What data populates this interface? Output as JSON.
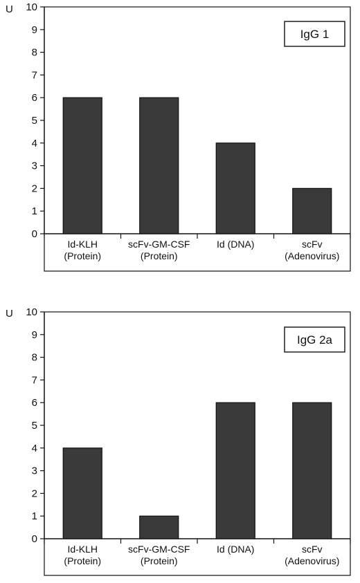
{
  "chart_data": [
    {
      "type": "bar",
      "title": "IgG 1",
      "ylabel": "U",
      "xlabel": "",
      "ylim": [
        0,
        10
      ],
      "yticks": [
        0,
        1,
        2,
        3,
        4,
        5,
        6,
        7,
        8,
        9,
        10
      ],
      "legend_position": "top-right",
      "grid": false,
      "bar_color": "#3a3a3a",
      "categories": [
        [
          "Id-KLH",
          "(Protein)"
        ],
        [
          "scFv-GM-CSF",
          "(Protein)"
        ],
        [
          "Id (DNA)"
        ],
        [
          "scFv",
          "(Adenovirus)"
        ]
      ],
      "values": [
        6,
        6,
        4,
        2
      ]
    },
    {
      "type": "bar",
      "title": "IgG 2a",
      "ylabel": "U",
      "xlabel": "",
      "ylim": [
        0,
        10
      ],
      "yticks": [
        0,
        1,
        2,
        3,
        4,
        5,
        6,
        7,
        8,
        9,
        10
      ],
      "legend_position": "top-right",
      "grid": false,
      "bar_color": "#3a3a3a",
      "categories": [
        [
          "Id-KLH",
          "(Protein)"
        ],
        [
          "scFv-GM-CSF",
          "(Protein)"
        ],
        [
          "Id (DNA)"
        ],
        [
          "scFv",
          "(Adenovirus)"
        ]
      ],
      "values": [
        4,
        1,
        6,
        6
      ]
    }
  ]
}
